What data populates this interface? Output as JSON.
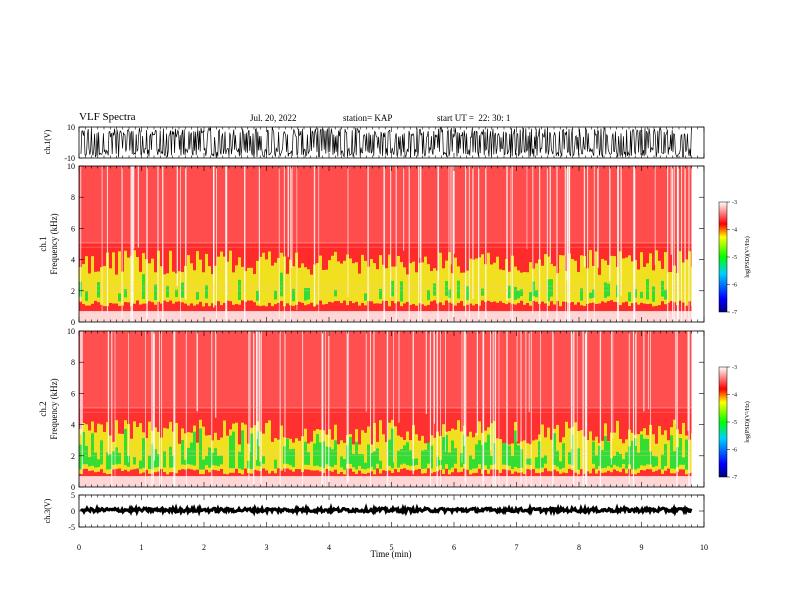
{
  "header": {
    "title": "VLF Spectra",
    "date": "Jul. 20, 2022",
    "station": "station= KAP",
    "start": "start UT =  22: 30: 1"
  },
  "colors": {
    "ch1_bg": "#ff2b2b",
    "ch2_bg": "#ff3030",
    "band_yellow": "#f0e020",
    "band_green": "#33dd33",
    "noise_white": "#ffffff",
    "trace": "#000000"
  },
  "chart_data": [
    {
      "type": "line",
      "name": "ch1-waveform",
      "ylabel": "ch.1(V)",
      "ylim": [
        -10,
        10
      ],
      "y_ticks": [
        "10",
        "-10"
      ],
      "xlim": [
        0,
        10
      ],
      "x_ticks": [
        "0",
        "1",
        "2",
        "3",
        "4",
        "5",
        "6",
        "7",
        "8",
        "9",
        "10"
      ],
      "series_extent_min": 9.8,
      "envelope_v": 9.5
    },
    {
      "type": "heatmap",
      "name": "ch1-spectrogram",
      "ylabel": "Frequency (kHz)",
      "channel_label": "ch.1",
      "ylim": [
        0,
        10
      ],
      "y_ticks": [
        "0",
        "2",
        "4",
        "6",
        "8",
        "10"
      ],
      "xlim": [
        0,
        10
      ],
      "x_ticks": [
        "0",
        "1",
        "2",
        "3",
        "4",
        "5",
        "6",
        "7",
        "8",
        "9",
        "10"
      ],
      "band_khz": [
        1.0,
        3.5
      ],
      "colorbar": {
        "label": "log(PSD)(V²/Hz)",
        "range": [
          -7,
          -3
        ],
        "ticks": [
          "-3",
          "-4",
          "-5",
          "-6",
          "-7"
        ]
      }
    },
    {
      "type": "heatmap",
      "name": "ch2-spectrogram",
      "ylabel": "Frequency (kHz)",
      "channel_label": "ch.2",
      "ylim": [
        0,
        10
      ],
      "y_ticks": [
        "0",
        "2",
        "4",
        "6",
        "8",
        "10"
      ],
      "xlim": [
        0,
        10
      ],
      "x_ticks": [
        "0",
        "1",
        "2",
        "3",
        "4",
        "5",
        "6",
        "7",
        "8",
        "9",
        "10"
      ],
      "band_khz": [
        0.8,
        3.2
      ],
      "colorbar": {
        "label": "log(PSD)(V²/Hz)",
        "range": [
          -7,
          -3
        ],
        "ticks": [
          "-3",
          "-4",
          "-5",
          "-6",
          "-7"
        ]
      }
    },
    {
      "type": "line",
      "name": "ch3-waveform",
      "ylabel": "ch.3(V)",
      "ylim": [
        -5,
        5
      ],
      "y_ticks": [
        "5",
        "0",
        "-5"
      ],
      "xlim": [
        0,
        10
      ],
      "x_ticks": [
        "0",
        "1",
        "2",
        "3",
        "4",
        "5",
        "6",
        "7",
        "8",
        "9",
        "10"
      ],
      "xlabel": "Time (min)",
      "series_extent_min": 9.8,
      "level_v": 0.3
    }
  ]
}
